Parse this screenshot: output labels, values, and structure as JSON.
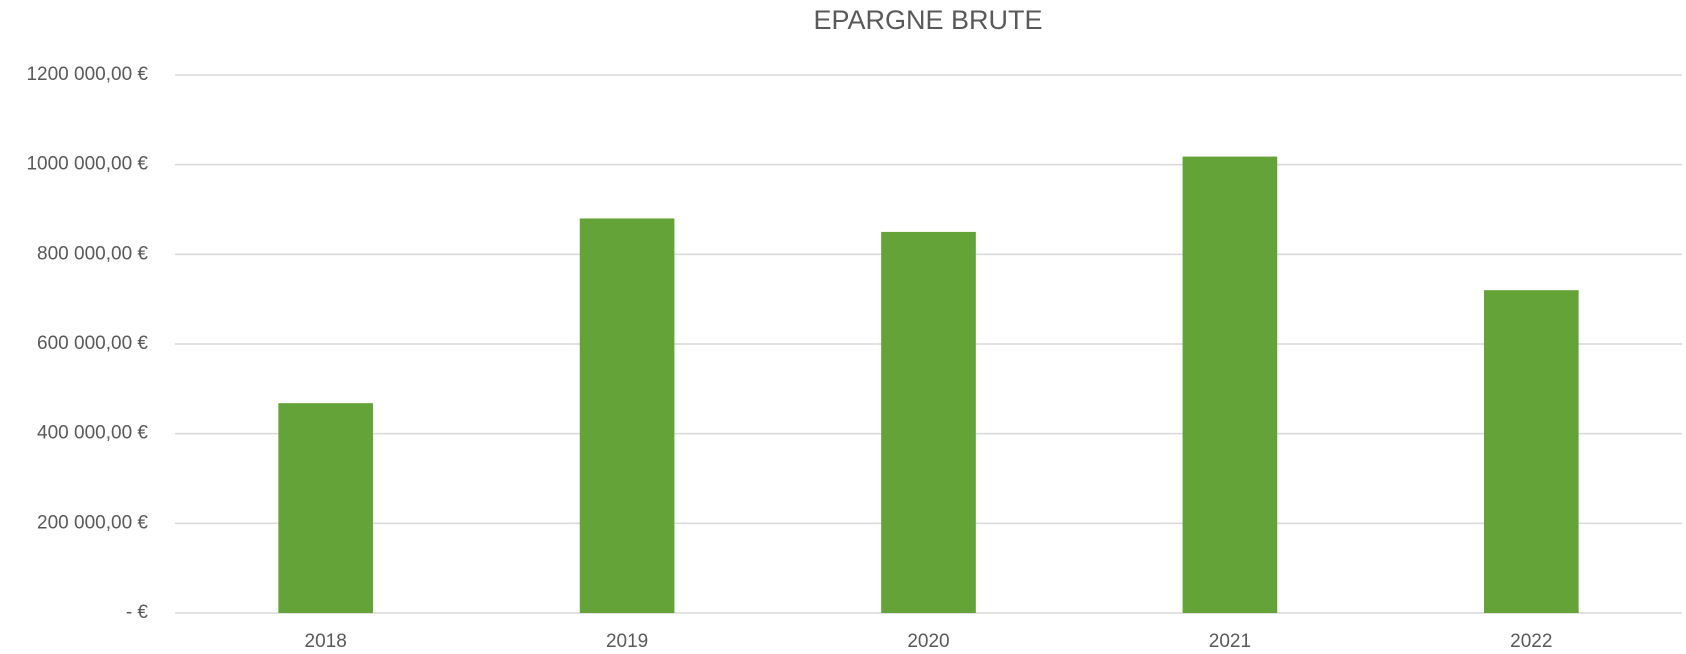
{
  "chart_data": {
    "type": "bar",
    "title": "EPARGNE BRUTE",
    "categories": [
      "2018",
      "2019",
      "2020",
      "2021",
      "2022"
    ],
    "values": [
      468000,
      880000,
      850000,
      1018000,
      720000
    ],
    "color": "#63a337",
    "ylim": [
      0,
      1200000
    ],
    "yticks": [
      {
        "value": 0,
        "label": "-  €"
      },
      {
        "value": 200000,
        "label": "200 000,00 €"
      },
      {
        "value": 400000,
        "label": "400 000,00 €"
      },
      {
        "value": 600000,
        "label": "600 000,00 €"
      },
      {
        "value": 800000,
        "label": "800 000,00 €"
      },
      {
        "value": 1000000,
        "label": "1000 000,00 €"
      },
      {
        "value": 1200000,
        "label": "1200 000,00 €"
      }
    ],
    "grid": true
  }
}
